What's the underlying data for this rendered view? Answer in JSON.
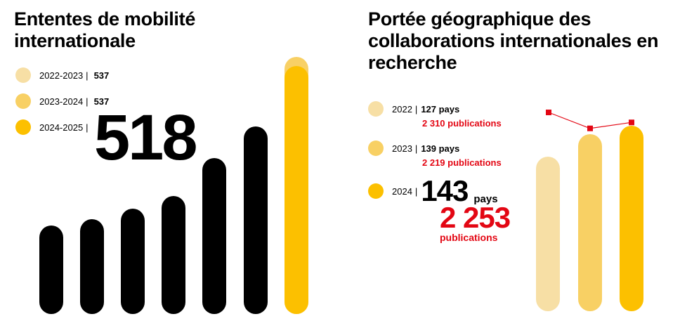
{
  "colors": {
    "year1": "#f7dfa5",
    "year2": "#f8d064",
    "year3": "#fcc000",
    "black": "#000000",
    "red": "#e30613"
  },
  "left": {
    "title": "Ententes de mobilité internationale",
    "legend": [
      {
        "year": "2022-2023",
        "value": "537"
      },
      {
        "year": "2023-2024",
        "value": "537"
      },
      {
        "year": "2024-2025",
        "value": ""
      }
    ],
    "big_number": "518"
  },
  "right": {
    "title": "Portée géographique des collaborations internationales en recherche",
    "legend": [
      {
        "year": "2022",
        "countries": "127 pays",
        "publications": "2 310 publications"
      },
      {
        "year": "2023",
        "countries": "139 pays",
        "publications": "2 219 publications"
      }
    ],
    "highlight": {
      "year": "2024",
      "countries_value": "143",
      "countries_unit": "pays",
      "publications_value": "2 253",
      "publications_unit": "publications"
    }
  },
  "chart_data": [
    {
      "type": "bar",
      "title": "Ententes de mobilité internationale",
      "series": [
        {
          "name": "2024-2025",
          "values": [
            518
          ]
        }
      ],
      "decorative_bars_relative": [
        0.42,
        0.45,
        0.5,
        0.56,
        0.74,
        0.89
      ],
      "comparison": [
        {
          "name": "2022-2023",
          "value": 537
        },
        {
          "name": "2023-2024",
          "value": 537
        },
        {
          "name": "2024-2025",
          "value": 518
        }
      ]
    },
    {
      "type": "bar",
      "title": "Portée géographique des collaborations internationales en recherche",
      "categories": [
        "2022",
        "2023",
        "2024"
      ],
      "series": [
        {
          "name": "pays",
          "values": [
            127,
            139,
            143
          ]
        },
        {
          "name": "publications",
          "values": [
            2310,
            2219,
            2253
          ]
        }
      ]
    }
  ]
}
